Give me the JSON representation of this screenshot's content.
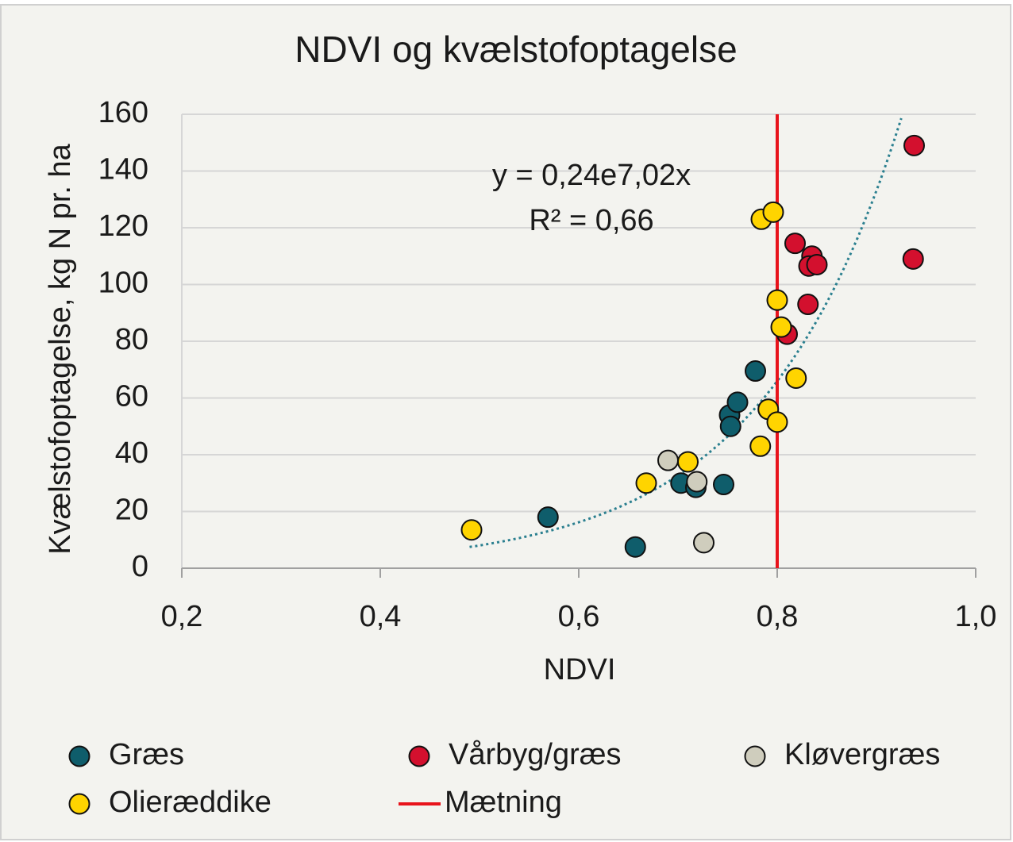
{
  "chart_data": {
    "type": "scatter",
    "title": "NDVI og kvælstofoptagelse",
    "x_label": "NDVI",
    "y_label": "Kvælstofoptagelse, kg N pr. ha",
    "xlim": [
      0.2,
      1.0
    ],
    "ylim": [
      0,
      160
    ],
    "xticks": [
      {
        "value": 0.2,
        "label": "0,2"
      },
      {
        "value": 0.4,
        "label": "0,4"
      },
      {
        "value": 0.6,
        "label": "0,6"
      },
      {
        "value": 0.8,
        "label": "0,8"
      },
      {
        "value": 1.0,
        "label": "1,0"
      }
    ],
    "yticks": [
      0,
      20,
      40,
      60,
      80,
      100,
      120,
      140,
      160
    ],
    "grid": true,
    "series": [
      {
        "name": "Græs",
        "color": "#0f5d6b",
        "x": [
          0.569,
          0.657,
          0.703,
          0.718,
          0.746,
          0.752,
          0.753,
          0.76,
          0.778
        ],
        "values": [
          18,
          7.5,
          30,
          28.5,
          29.5,
          54,
          50,
          58.5,
          69.5
        ]
      },
      {
        "name": "Vårbyg/græs",
        "color": "#d3102e",
        "x": [
          0.938,
          0.937,
          0.818,
          0.835,
          0.832,
          0.84,
          0.831,
          0.81
        ],
        "values": [
          149,
          109,
          114.5,
          110,
          106.5,
          107,
          93,
          82.5
        ]
      },
      {
        "name": "Kløvergræs",
        "color": "#cfcdbd",
        "x": [
          0.69,
          0.719,
          0.726
        ],
        "values": [
          38,
          30.5,
          9
        ]
      },
      {
        "name": "Olieræddike",
        "color": "#ffd400",
        "x": [
          0.492,
          0.668,
          0.71,
          0.784,
          0.796,
          0.8,
          0.804,
          0.819,
          0.791,
          0.8,
          0.783
        ],
        "values": [
          13.5,
          30,
          37.5,
          123,
          125.5,
          94.5,
          85,
          67,
          56,
          51.5,
          43
        ]
      }
    ],
    "saturation_line": {
      "name": "Mætning",
      "x": 0.8,
      "color": "#e8131b"
    },
    "trendline": {
      "a": 0.24,
      "b": 7.02,
      "xrange": [
        0.49,
        0.925
      ],
      "color": "#2a7f8f",
      "equation": "y = 0,24e7,02x",
      "r2": "R² = 0,66"
    }
  }
}
